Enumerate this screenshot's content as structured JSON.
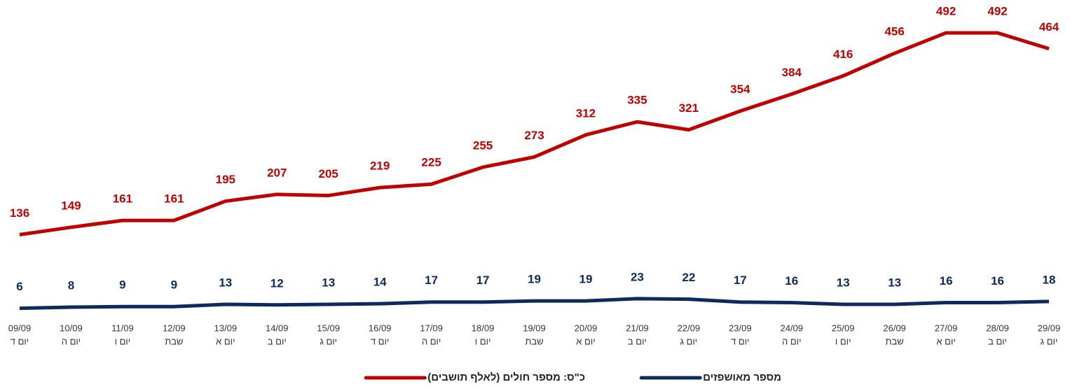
{
  "chart_data": {
    "type": "line",
    "categories": [
      "09/09",
      "10/09",
      "11/09",
      "12/09",
      "13/09",
      "14/09",
      "15/09",
      "16/09",
      "17/09",
      "18/09",
      "19/09",
      "20/09",
      "21/09",
      "22/09",
      "23/09",
      "24/09",
      "25/09",
      "26/09",
      "27/09",
      "28/09",
      "29/09"
    ],
    "weekday_labels": [
      "יום ד",
      "יום ה",
      "יום ו",
      "שבת",
      "יום א",
      "יום ב",
      "יום ג",
      "יום ד",
      "יום ה",
      "יום ו",
      "שבת",
      "יום א",
      "יום ב",
      "יום ג",
      "יום ד",
      "יום ה",
      "יום ו",
      "שבת",
      "יום א",
      "יום ב",
      "יום ג"
    ],
    "series": [
      {
        "name": "כ\"ס: מספר חולים (לאלף תושבים)",
        "color": "#c00000",
        "values": [
          136,
          149,
          161,
          161,
          195,
          207,
          205,
          219,
          225,
          255,
          273,
          312,
          335,
          321,
          354,
          384,
          416,
          456,
          492,
          492,
          464
        ]
      },
      {
        "name": "מספר מאושפזים",
        "color": "#0d2a5e",
        "values": [
          6,
          8,
          9,
          9,
          13,
          12,
          13,
          14,
          17,
          17,
          19,
          19,
          23,
          22,
          17,
          16,
          13,
          13,
          16,
          16,
          18
        ]
      }
    ],
    "ylim": [
      0,
      500
    ]
  }
}
